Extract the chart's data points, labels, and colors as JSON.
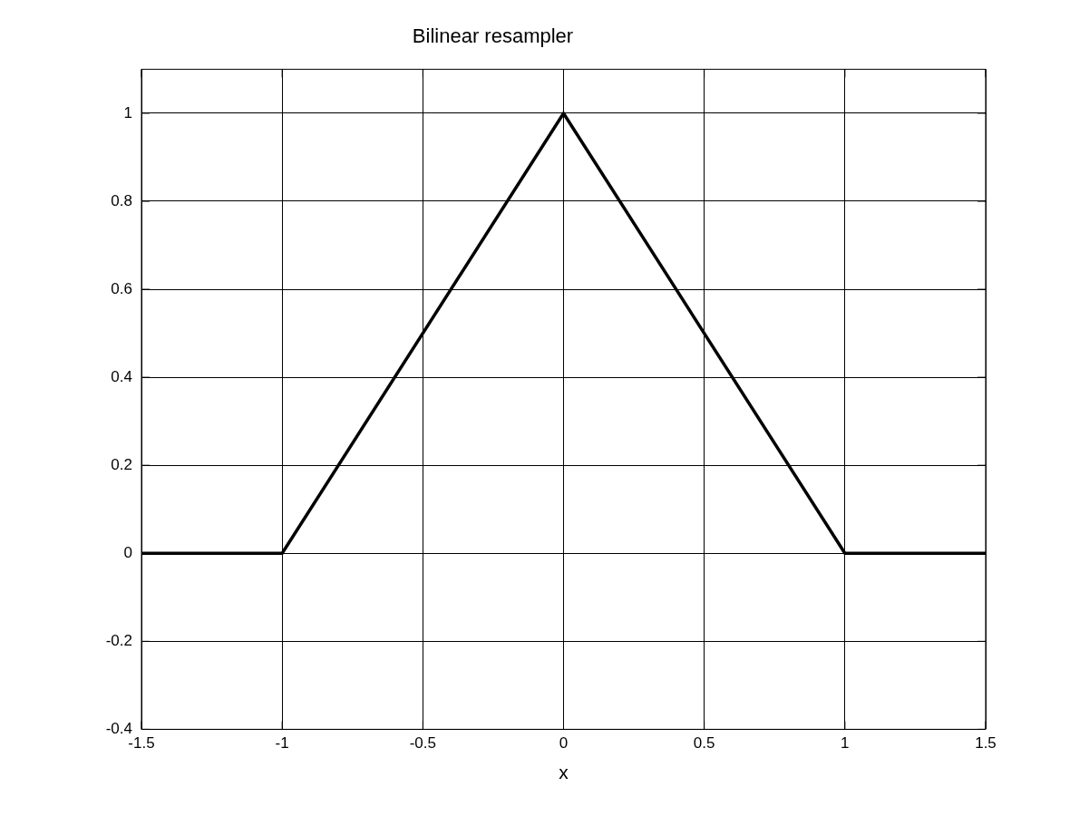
{
  "chart_data": {
    "type": "line",
    "title": "Bilinear resampler",
    "xlabel": "x",
    "x": [
      -1.5,
      -1,
      0,
      1,
      1.5
    ],
    "series": [
      {
        "color": "#000000",
        "values": [
          0,
          0,
          1,
          0,
          0
        ]
      }
    ],
    "xlim": [
      -1.5,
      1.5
    ],
    "ylim": [
      -0.4,
      1.1
    ],
    "xticks": [
      -1.5,
      -1,
      -0.5,
      0,
      0.5,
      1,
      1.5
    ],
    "yticks": [
      -0.4,
      -0.2,
      0,
      0.2,
      0.4,
      0.6,
      0.8,
      1
    ],
    "grid": true,
    "marker": "none",
    "line_style": "solid",
    "legend": false
  }
}
